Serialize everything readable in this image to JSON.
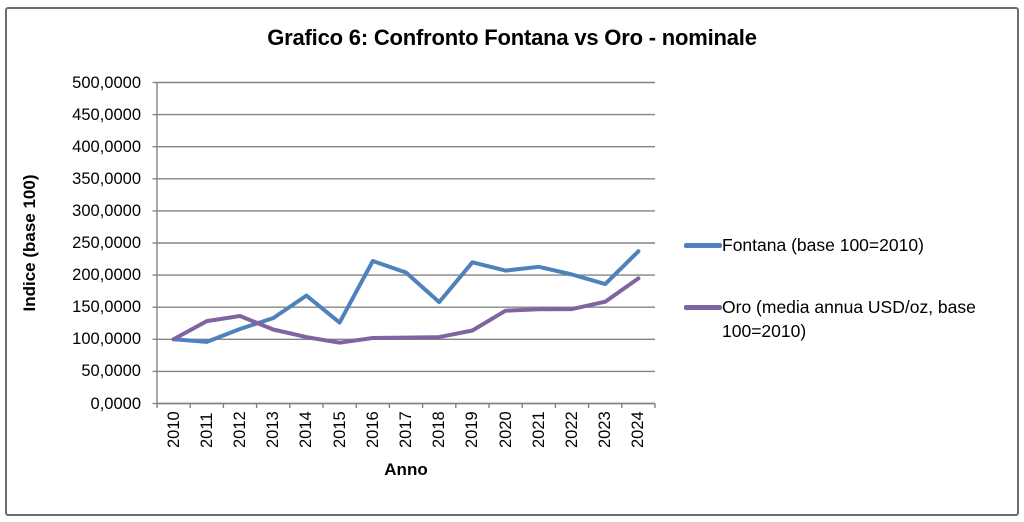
{
  "figure": {
    "title": "Grafico 6: Confronto Fontana vs Oro - nominale"
  },
  "chart_data": {
    "type": "line",
    "title": "Grafico 6: Confronto Fontana vs Oro - nominale",
    "xlabel": "Anno",
    "ylabel": "Indice (base 100)",
    "categories": [
      "2010",
      "2011",
      "2012",
      "2013",
      "2014",
      "2015",
      "2016",
      "2017",
      "2018",
      "2019",
      "2020",
      "2021",
      "2022",
      "2023",
      "2024"
    ],
    "series": [
      {
        "name": "Fontana (base 100=2010)",
        "color": "#4F81BD",
        "values": [
          100.0,
          96.0,
          116.0,
          133.0,
          168.0,
          126.0,
          222.0,
          204.0,
          158.0,
          220.0,
          207.0,
          213.0,
          201.0,
          186.0,
          237.0
        ]
      },
      {
        "name": "Oro (media annua USD/oz, base 100=2010)",
        "color": "#8064A2",
        "values": [
          100.0,
          128.3,
          136.3,
          115.2,
          103.4,
          94.7,
          102.1,
          102.7,
          103.5,
          113.7,
          144.5,
          146.9,
          147.0,
          158.5,
          194.9
        ]
      }
    ],
    "ylim": [
      0,
      500
    ],
    "ytick_step": 50,
    "ytick_labels": [
      "0,0000",
      "50,0000",
      "100,0000",
      "150,0000",
      "200,0000",
      "250,0000",
      "300,0000",
      "350,0000",
      "400,0000",
      "450,0000",
      "500,0000"
    ],
    "grid": true,
    "legend_position": "right"
  },
  "colors": {
    "grid": "#848484",
    "axis": "#848484",
    "frame_border": "#6e6e6e",
    "text": "#000000",
    "background": "#ffffff"
  }
}
